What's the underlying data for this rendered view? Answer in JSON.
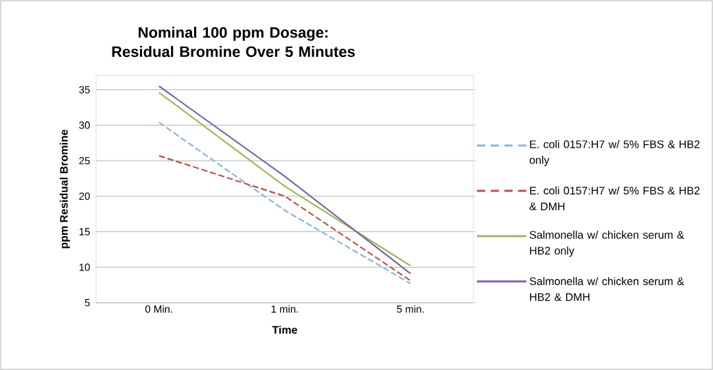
{
  "chart_data": {
    "type": "line",
    "title": "Nominal 100 ppm Dosage: Residual Bromine Over 5 Minutes",
    "xlabel": "Time",
    "ylabel": "ppm Residual Bromine",
    "categories": [
      "0 Min.",
      "1 min.",
      "5 min."
    ],
    "series": [
      {
        "name": "E. coli 0157:H7 w/ 5% FBS & HB2 only",
        "color": "#8db3e2",
        "line_style": "dashed",
        "values": [
          30.4,
          18.0,
          7.7
        ]
      },
      {
        "name": "E. coli 0157:H7 w/ 5% FBS & HB2 & DMH",
        "color": "#c0504d",
        "line_style": "dashed",
        "values": [
          25.7,
          20.0,
          8.1
        ]
      },
      {
        "name": "Salmonella w/ chicken serum & HB2 only",
        "color": "#9bbb59",
        "line_style": "solid",
        "values": [
          34.6,
          21.4,
          10.2
        ]
      },
      {
        "name": "Salmonella w/ chicken serum & HB2 & DMH",
        "color": "#8064a2",
        "line_style": "solid",
        "values": [
          35.5,
          22.8,
          9.1
        ]
      }
    ],
    "ylim": [
      5,
      37
    ],
    "yticks": [
      5,
      10,
      15,
      20,
      25,
      30,
      35
    ],
    "grid": "y",
    "legend": "right"
  }
}
